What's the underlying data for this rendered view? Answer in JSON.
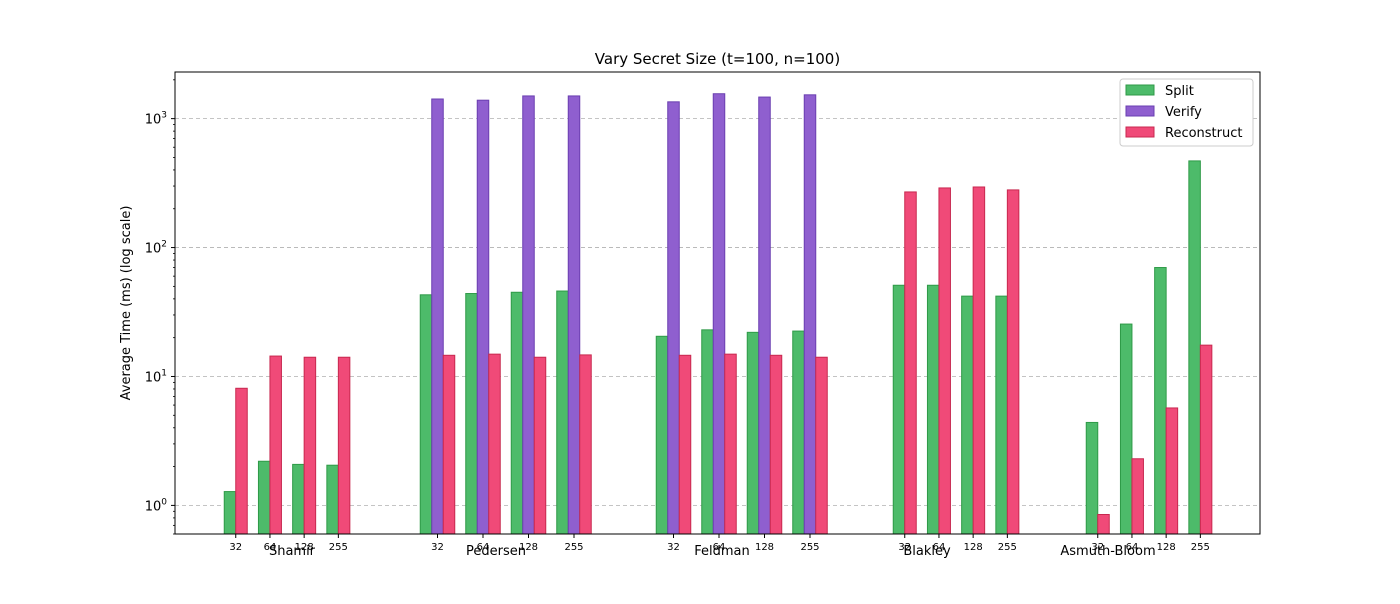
{
  "chart_data": {
    "type": "bar",
    "title": "Vary Secret Size (t=100, n=100)",
    "xlabel": "",
    "ylabel": "Average Time (ms) (log scale)",
    "yscale": "log",
    "ylim": [
      0.6,
      2300
    ],
    "yticks": [
      1,
      10,
      100,
      1000
    ],
    "ytick_labels": [
      {
        "base": "10",
        "exp": "0"
      },
      {
        "base": "10",
        "exp": "1"
      },
      {
        "base": "10",
        "exp": "2"
      },
      {
        "base": "10",
        "exp": "3"
      }
    ],
    "grid": "y-dashed",
    "legend_position": "top-right",
    "series": [
      {
        "name": "Split",
        "color": "#4dbb6a",
        "edge": "#2e9a47"
      },
      {
        "name": "Verify",
        "color": "#8f5fcf",
        "edge": "#6a3fb0"
      },
      {
        "name": "Reconstruct",
        "color": "#f04a78",
        "edge": "#c8284f"
      }
    ],
    "groups": [
      {
        "name": "Shamir",
        "sizes": [
          "32",
          "64",
          "128",
          "255"
        ],
        "Split": [
          1.28,
          2.2,
          2.08,
          2.05
        ],
        "Verify": [
          null,
          null,
          null,
          null
        ],
        "Reconstruct": [
          8.1,
          14.4,
          14.1,
          14.1
        ]
      },
      {
        "name": "Pedersen",
        "sizes": [
          "32",
          "64",
          "128",
          "255"
        ],
        "Split": [
          43,
          44,
          45,
          46
        ],
        "Verify": [
          1420,
          1390,
          1500,
          1500
        ],
        "Reconstruct": [
          14.6,
          14.9,
          14.1,
          14.7
        ]
      },
      {
        "name": "Feldman",
        "sizes": [
          "32",
          "64",
          "128",
          "255"
        ],
        "Split": [
          20.5,
          23,
          22,
          22.5
        ],
        "Verify": [
          1350,
          1560,
          1470,
          1530
        ],
        "Reconstruct": [
          14.6,
          14.9,
          14.6,
          14.1
        ]
      },
      {
        "name": "Blakley",
        "sizes": [
          "32",
          "64",
          "128",
          "255"
        ],
        "Split": [
          51,
          51,
          42,
          42
        ],
        "Verify": [
          null,
          null,
          null,
          null
        ],
        "Reconstruct": [
          270,
          290,
          295,
          280
        ]
      },
      {
        "name": "Asmuth-Bloom",
        "sizes": [
          "32",
          "64",
          "128",
          "255"
        ],
        "Split": [
          4.4,
          25.5,
          70,
          470
        ],
        "Verify": [
          null,
          null,
          null,
          null
        ],
        "Reconstruct": [
          0.85,
          2.3,
          5.7,
          17.5
        ]
      }
    ]
  }
}
